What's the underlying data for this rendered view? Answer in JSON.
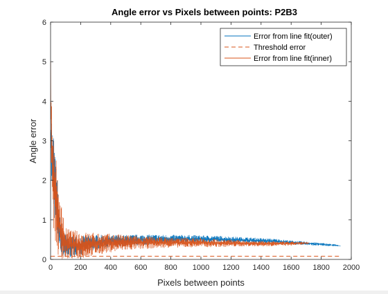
{
  "chart_data": {
    "type": "line",
    "title": "Angle error vs Pixels between points: P2B3",
    "xlabel": "Pixels between points",
    "ylabel": "Angle error",
    "xlim": [
      0,
      2000
    ],
    "ylim": [
      0,
      6
    ],
    "xticks": [
      0,
      200,
      400,
      600,
      800,
      1000,
      1200,
      1400,
      1600,
      1800,
      2000
    ],
    "yticks": [
      0,
      1,
      2,
      3,
      4,
      5,
      6
    ],
    "grid": false,
    "legend_position": "top-right",
    "series": [
      {
        "name": "Error from line fit(outer)",
        "color": "#0072BD",
        "style": "solid",
        "x_range": [
          1,
          1930
        ],
        "envelope": {
          "x": [
            1,
            10,
            20,
            40,
            60,
            80,
            100,
            150,
            200,
            300,
            400,
            500,
            600,
            700,
            800,
            900,
            1000,
            1100,
            1200,
            1300,
            1400,
            1500,
            1600,
            1700,
            1800,
            1900,
            1930
          ],
          "low": [
            2.0,
            1.6,
            1.2,
            0.6,
            0.2,
            0.05,
            0.02,
            0.05,
            0.1,
            0.25,
            0.3,
            0.33,
            0.36,
            0.38,
            0.4,
            0.41,
            0.42,
            0.42,
            0.42,
            0.42,
            0.41,
            0.4,
            0.38,
            0.36,
            0.34,
            0.33,
            0.33
          ],
          "high": [
            4.2,
            3.4,
            3.2,
            2.2,
            1.2,
            0.8,
            0.65,
            0.6,
            0.6,
            0.62,
            0.62,
            0.62,
            0.63,
            0.63,
            0.62,
            0.62,
            0.61,
            0.6,
            0.58,
            0.56,
            0.54,
            0.52,
            0.48,
            0.45,
            0.42,
            0.38,
            0.34
          ]
        }
      },
      {
        "name": "Threshold error",
        "color": "#D95319",
        "style": "dashed",
        "x": [
          1,
          1930
        ],
        "y": [
          0.08,
          0.08
        ]
      },
      {
        "name": "Error from line fit(inner)",
        "color": "#D95319",
        "style": "solid",
        "x_range": [
          1,
          1720
        ],
        "envelope": {
          "x": [
            1,
            5,
            10,
            20,
            40,
            60,
            80,
            100,
            150,
            200,
            300,
            400,
            500,
            600,
            700,
            800,
            900,
            1000,
            1100,
            1200,
            1300,
            1400,
            1500,
            1600,
            1700,
            1720
          ],
          "low": [
            3.5,
            2.5,
            1.5,
            0.8,
            0.2,
            0.0,
            0.0,
            0.0,
            0.0,
            0.02,
            0.1,
            0.18,
            0.22,
            0.26,
            0.28,
            0.3,
            0.3,
            0.31,
            0.31,
            0.32,
            0.33,
            0.33,
            0.34,
            0.35,
            0.38,
            0.4
          ],
          "high": [
            5.1,
            4.8,
            4.0,
            3.1,
            2.4,
            1.7,
            1.2,
            0.8,
            0.75,
            0.7,
            0.68,
            0.65,
            0.62,
            0.6,
            0.58,
            0.56,
            0.55,
            0.54,
            0.52,
            0.5,
            0.48,
            0.47,
            0.46,
            0.45,
            0.44,
            0.42
          ]
        }
      }
    ]
  }
}
